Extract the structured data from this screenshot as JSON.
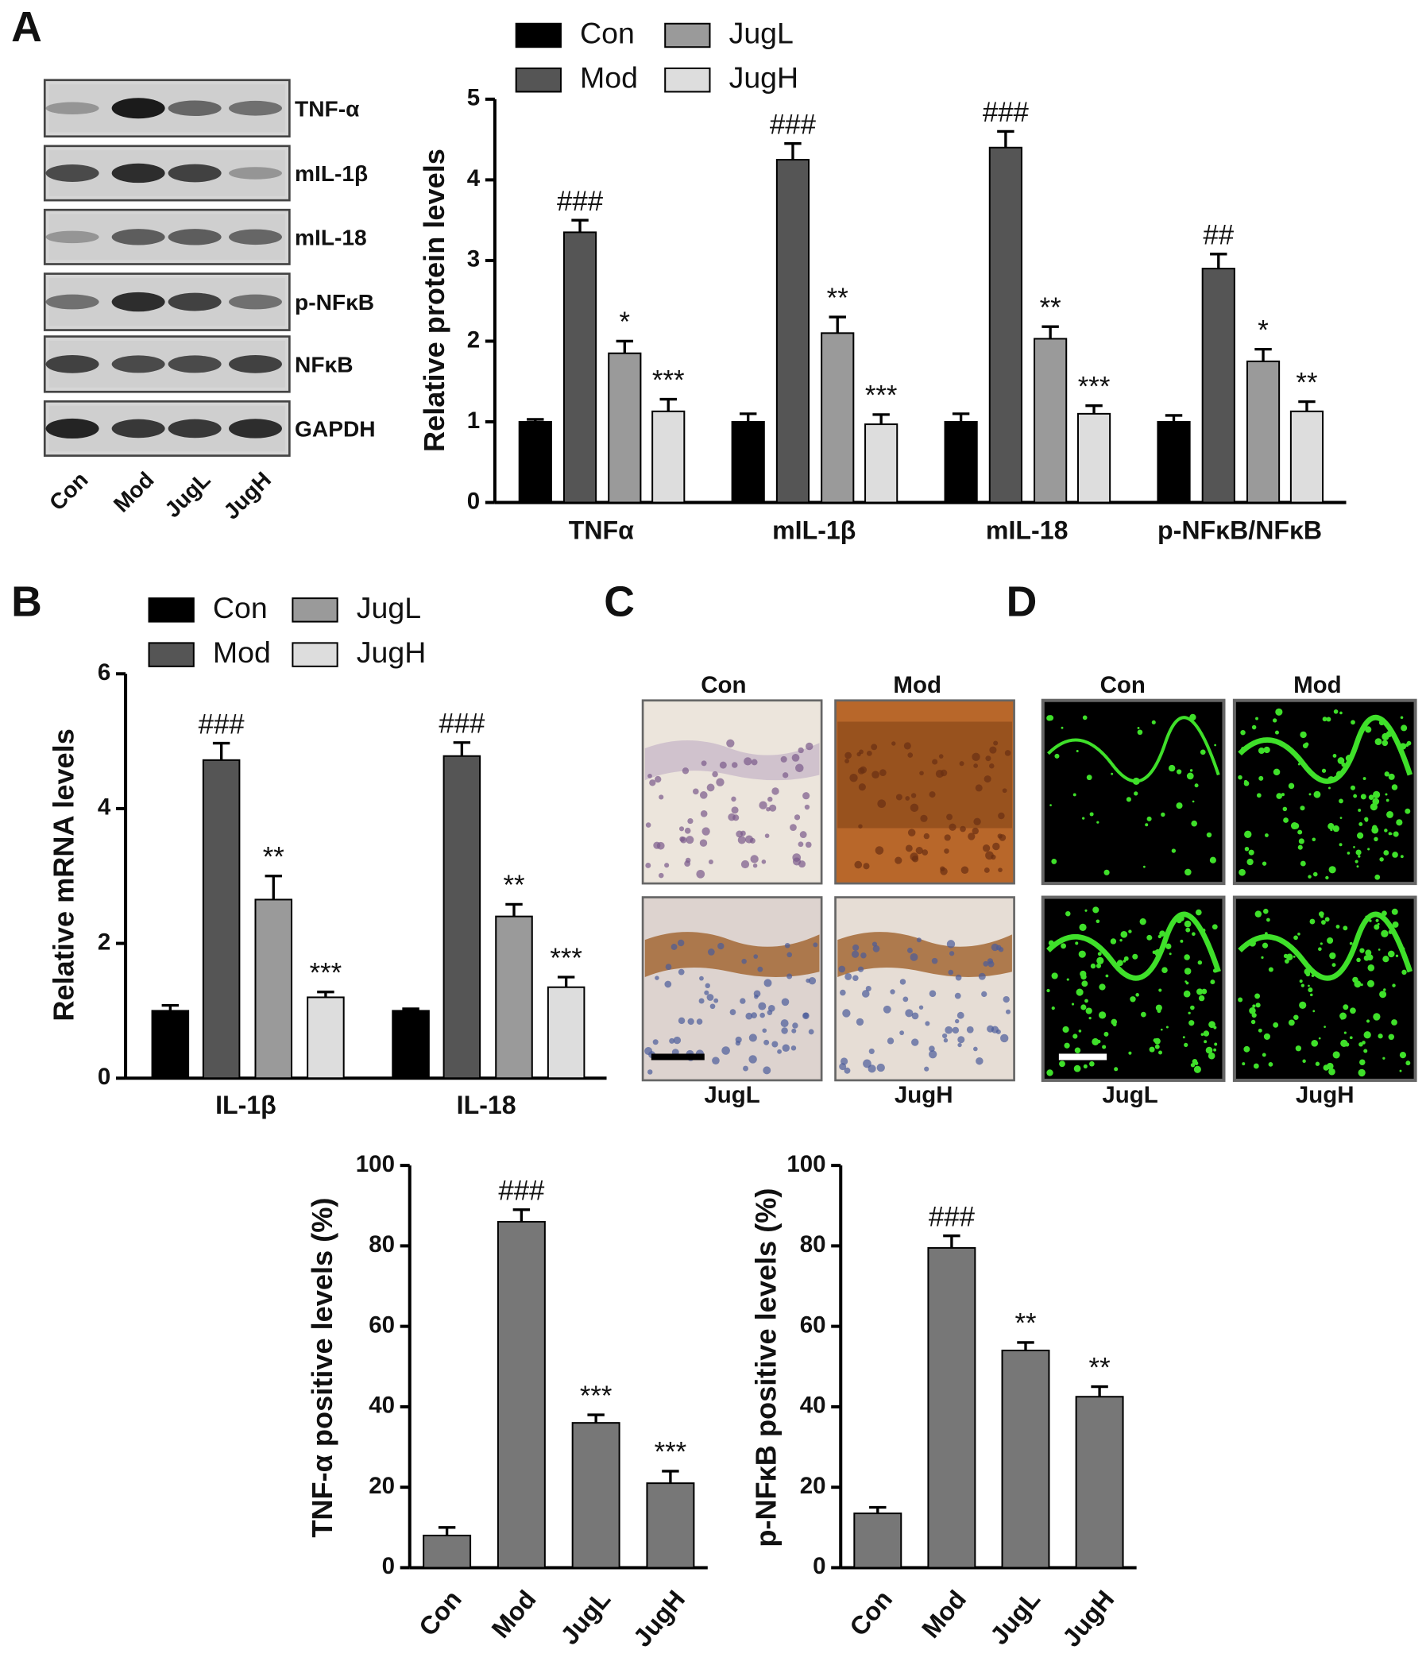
{
  "panels": {
    "letters": [
      "A",
      "B",
      "C",
      "D"
    ],
    "blot": {
      "rows": [
        "TNF-α",
        "mIL-1β",
        "mIL-18",
        "p-NFκB",
        "NFκB",
        "GAPDH"
      ],
      "lanes": [
        "Con",
        "Mod",
        "JugL",
        "JugH"
      ]
    },
    "ihc": {
      "labels": [
        "Con",
        "Mod",
        "JugL",
        "JugH"
      ]
    },
    "fluorescence": {
      "labels": [
        "Con",
        "Mod",
        "JugL",
        "JugH"
      ]
    }
  },
  "chart_data": [
    {
      "type": "bar",
      "ylabel": "Relative protein levels",
      "categories": [
        "TNFα",
        "mIL-1β",
        "mIL-18",
        "p-NFκB/NFκB"
      ],
      "ylim": [
        0,
        5
      ],
      "yticks": [
        0,
        1,
        2,
        3,
        4,
        5
      ],
      "legend": "top",
      "series": [
        {
          "name": "Con",
          "color": "#000000",
          "values": [
            1.0,
            1.0,
            1.0,
            1.0
          ],
          "errors": [
            0.03,
            0.1,
            0.1,
            0.08
          ]
        },
        {
          "name": "Mod",
          "color": "#555555",
          "values": [
            3.35,
            4.25,
            4.4,
            2.9
          ],
          "errors": [
            0.15,
            0.2,
            0.2,
            0.18
          ],
          "sig": [
            "###",
            "###",
            "###",
            "##"
          ]
        },
        {
          "name": "JugL",
          "color": "#9a9a9a",
          "values": [
            1.85,
            2.1,
            2.03,
            1.75
          ],
          "errors": [
            0.15,
            0.2,
            0.15,
            0.15
          ],
          "sig": [
            "*",
            "**",
            "**",
            "*"
          ]
        },
        {
          "name": "JugH",
          "color": "#dddddd",
          "values": [
            1.13,
            0.97,
            1.1,
            1.13
          ],
          "errors": [
            0.15,
            0.12,
            0.1,
            0.12
          ],
          "sig": [
            "***",
            "***",
            "***",
            "**"
          ]
        }
      ]
    },
    {
      "type": "bar",
      "ylabel": "Relative mRNA levels",
      "categories": [
        "IL-1β",
        "IL-18"
      ],
      "ylim": [
        0,
        6
      ],
      "yticks": [
        0,
        2,
        4,
        6
      ],
      "legend": "top",
      "series": [
        {
          "name": "Con",
          "color": "#000000",
          "values": [
            1.0,
            1.0
          ],
          "errors": [
            0.08,
            0.03
          ]
        },
        {
          "name": "Mod",
          "color": "#555555",
          "values": [
            4.72,
            4.78
          ],
          "errors": [
            0.25,
            0.2
          ],
          "sig": [
            "###",
            "###"
          ]
        },
        {
          "name": "JugL",
          "color": "#9a9a9a",
          "values": [
            2.65,
            2.4
          ],
          "errors": [
            0.35,
            0.18
          ],
          "sig": [
            "**",
            "**"
          ]
        },
        {
          "name": "JugH",
          "color": "#dddddd",
          "values": [
            1.2,
            1.35
          ],
          "errors": [
            0.08,
            0.15
          ],
          "sig": [
            "***",
            "***"
          ]
        }
      ]
    },
    {
      "type": "bar",
      "ylabel": "TNF-α positive levels (%)",
      "categories": [
        "Con",
        "Mod",
        "JugL",
        "JugH"
      ],
      "color": "#777777",
      "values": [
        8,
        86,
        36,
        21
      ],
      "errors": [
        2,
        3,
        2,
        3
      ],
      "sig": [
        null,
        "###",
        "***",
        "***"
      ],
      "ylim": [
        0,
        100
      ],
      "yticks": [
        0,
        20,
        40,
        60,
        80,
        100
      ]
    },
    {
      "type": "bar",
      "ylabel": "p-NFκB positive levels (%)",
      "categories": [
        "Con",
        "Mod",
        "JugL",
        "JugH"
      ],
      "color": "#777777",
      "values": [
        13.5,
        79.5,
        54,
        42.5
      ],
      "errors": [
        1.5,
        3,
        2,
        2.5
      ],
      "sig": [
        null,
        "###",
        "**",
        "**"
      ],
      "ylim": [
        0,
        100
      ],
      "yticks": [
        0,
        20,
        40,
        60,
        80,
        100
      ]
    }
  ]
}
